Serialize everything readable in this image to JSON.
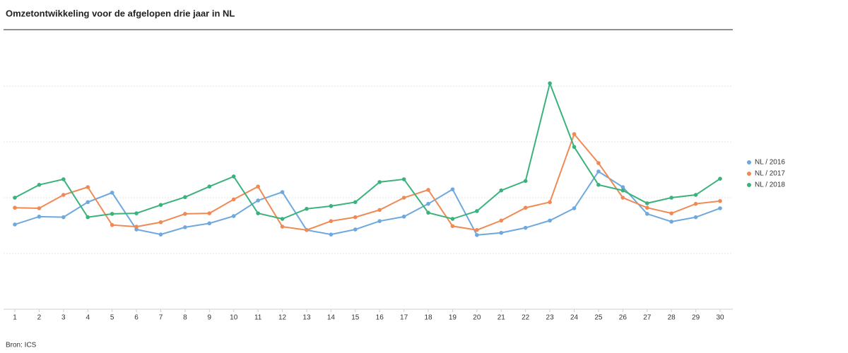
{
  "chart_data": {
    "type": "line",
    "title": "Omzetontwikkeling voor de afgelopen drie jaar in NL",
    "source": "Bron: ICS",
    "categories": [
      "1",
      "2",
      "3",
      "4",
      "5",
      "6",
      "7",
      "8",
      "9",
      "10",
      "11",
      "12",
      "13",
      "14",
      "15",
      "16",
      "17",
      "18",
      "19",
      "20",
      "21",
      "22",
      "23",
      "24",
      "25",
      "26",
      "27",
      "28",
      "29",
      "30"
    ],
    "series": [
      {
        "name": "NL / 2016",
        "color": "#6fa8dc",
        "values": [
          1.52,
          1.66,
          1.65,
          1.92,
          2.09,
          1.43,
          1.34,
          1.47,
          1.54,
          1.67,
          1.95,
          2.1,
          1.42,
          1.34,
          1.43,
          1.58,
          1.66,
          1.89,
          2.15,
          1.33,
          1.37,
          1.46,
          1.59,
          1.81,
          2.47,
          2.19,
          1.71,
          1.57,
          1.65,
          1.81
        ]
      },
      {
        "name": "NL / 2017",
        "color": "#ef8a54",
        "values": [
          1.82,
          1.81,
          2.05,
          2.19,
          1.51,
          1.48,
          1.56,
          1.71,
          1.72,
          1.97,
          2.2,
          1.48,
          1.42,
          1.58,
          1.65,
          1.78,
          2.0,
          2.14,
          1.49,
          1.42,
          1.59,
          1.82,
          1.92,
          3.14,
          2.62,
          2.0,
          1.82,
          1.72,
          1.89,
          1.94
        ]
      },
      {
        "name": "NL / 2018",
        "color": "#3bb27c",
        "values": [
          2.0,
          2.23,
          2.33,
          1.65,
          1.71,
          1.72,
          1.87,
          2.01,
          2.2,
          2.38,
          1.72,
          1.62,
          1.8,
          1.85,
          1.92,
          2.28,
          2.33,
          1.73,
          1.62,
          1.76,
          2.13,
          2.3,
          4.05,
          2.91,
          2.23,
          2.13,
          1.9,
          2.0,
          2.05,
          2.34
        ]
      }
    ],
    "ylim": [
      0,
      4.3
    ],
    "yticks": [
      1,
      2,
      3,
      4
    ],
    "grid": true,
    "legend": "right"
  }
}
